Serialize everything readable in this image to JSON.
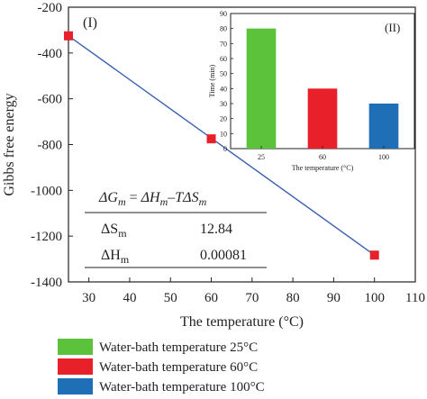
{
  "chart_data": [
    {
      "type": "scatter",
      "panel_label": "(I)",
      "xlabel": "The temperature (°C)",
      "ylabel": "Gibbs free energy",
      "xlim": [
        25,
        110
      ],
      "ylim": [
        -1400,
        -200
      ],
      "xticks": [
        30,
        40,
        50,
        60,
        70,
        80,
        90,
        100,
        110
      ],
      "yticks": [
        -200,
        -400,
        -600,
        -800,
        -1000,
        -1200,
        -1400
      ],
      "points": [
        {
          "x": 25,
          "y": -325
        },
        {
          "x": 60,
          "y": -775
        },
        {
          "x": 100,
          "y": -1283
        }
      ],
      "fit_line": {
        "x": [
          25,
          100
        ],
        "y": [
          -325,
          -1283
        ]
      },
      "series_color": "#e8202a",
      "line_color": "#3a5fb0",
      "grid": false,
      "equation": {
        "lhs": "ΔG",
        "lhs_sub": "m",
        "rhs_a": "ΔH",
        "rhs_a_sub": "m",
        "rhs_b": "TΔS",
        "rhs_b_sub": "m"
      },
      "table": [
        {
          "symbol": "ΔS",
          "sub": "m",
          "value": "12.84"
        },
        {
          "symbol": "ΔH",
          "sub": "m",
          "value": "0.00081"
        }
      ]
    },
    {
      "type": "bar",
      "panel_label": "(II)",
      "xlabel": "The temperature (°C)",
      "ylabel": "Time (min)",
      "categories": [
        "25",
        "60",
        "100"
      ],
      "values": [
        80,
        40,
        30
      ],
      "colors": [
        "#5cc23b",
        "#e8202a",
        "#1f6fb6"
      ],
      "ylim": [
        0,
        90
      ],
      "yticks": [
        0,
        10,
        20,
        30,
        40,
        50,
        60,
        70,
        80,
        90
      ],
      "grid": false
    }
  ],
  "legend": [
    {
      "label": "Water-bath temperature 25°C",
      "color": "#5cc23b"
    },
    {
      "label": "Water-bath temperature 60°C",
      "color": "#e8202a"
    },
    {
      "label": "Water-bath temperature 100°C",
      "color": "#1f6fb6"
    }
  ]
}
